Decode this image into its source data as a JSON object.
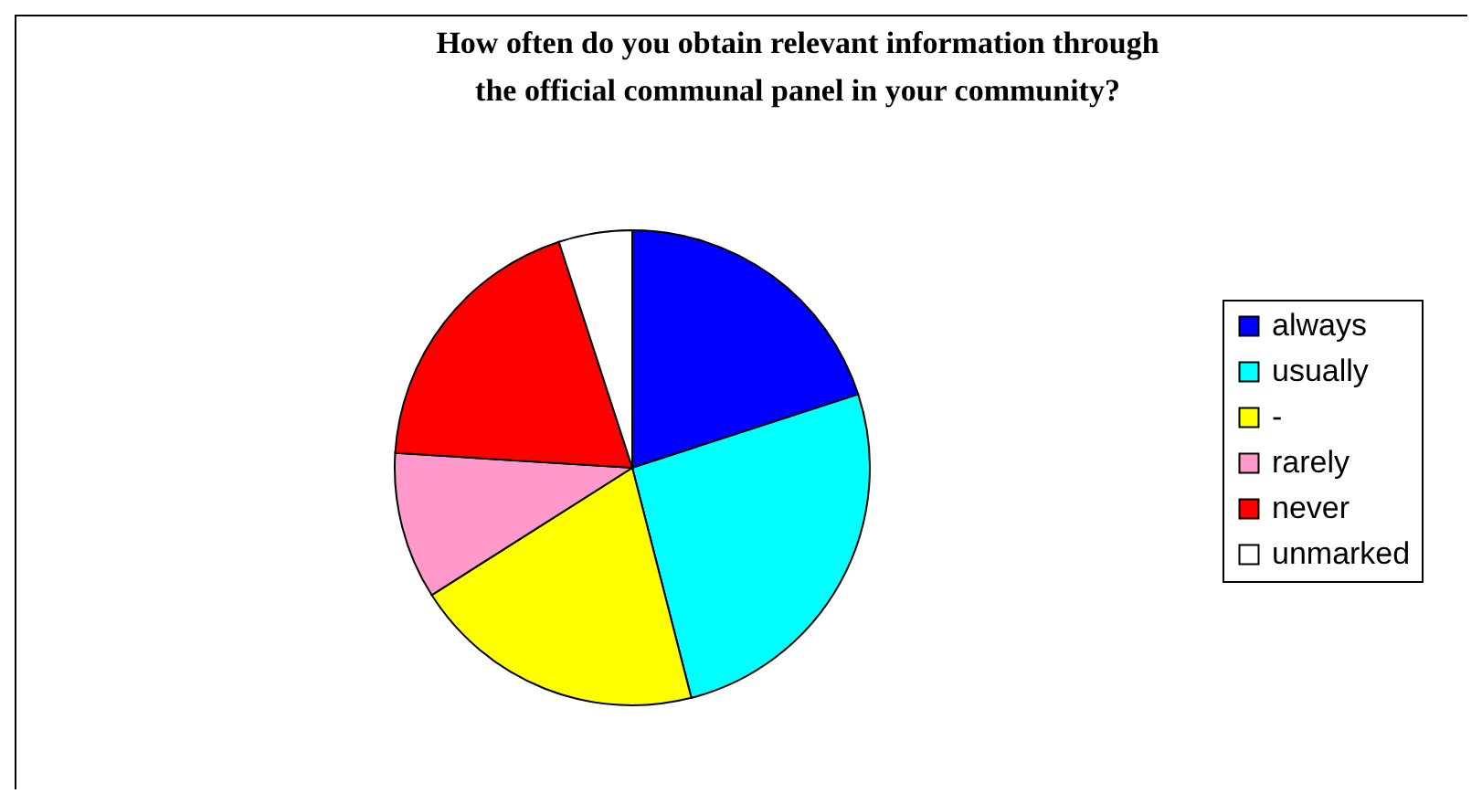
{
  "chart_data": {
    "type": "pie",
    "title": "How often do you obtain relevant information through the official communal panel in your community?",
    "categories": [
      "always",
      "usually",
      "-",
      "rarely",
      "never",
      "unmarked"
    ],
    "values": [
      20,
      26,
      20,
      10,
      19,
      5
    ],
    "colors": [
      "#0000ff",
      "#00ffff",
      "#ffff00",
      "#ff99cc",
      "#ff0000",
      "#ffffff"
    ],
    "legend": "right"
  }
}
